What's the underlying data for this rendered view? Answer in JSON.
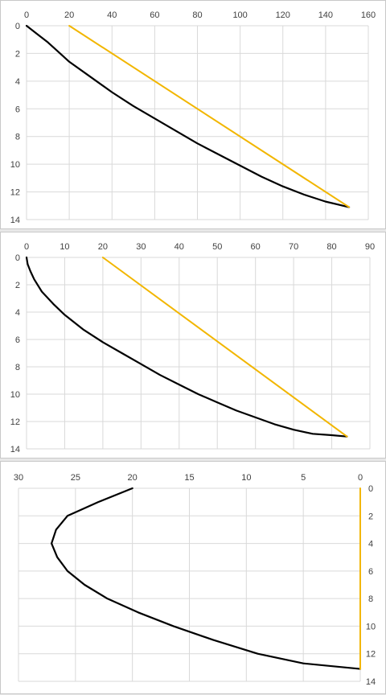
{
  "colors": {
    "series_black": "#000000",
    "series_gold": "#f2b600",
    "grid": "#d9d9d9"
  },
  "chart_data": [
    {
      "type": "line",
      "xlim": [
        0,
        160
      ],
      "ylim": [
        0,
        14
      ],
      "x_ticks": [
        0,
        20,
        40,
        60,
        80,
        100,
        120,
        140,
        160
      ],
      "y_ticks": [
        0,
        2,
        4,
        6,
        8,
        10,
        12,
        14
      ],
      "x_axis": "top",
      "y_reversed": true,
      "grid": true,
      "series": [
        {
          "color": "#000000",
          "points": [
            [
              0,
              0
            ],
            [
              5,
              0.6
            ],
            [
              10,
              1.2
            ],
            [
              15,
              1.9
            ],
            [
              20,
              2.6
            ],
            [
              30,
              3.7
            ],
            [
              40,
              4.8
            ],
            [
              50,
              5.8
            ],
            [
              60,
              6.7
            ],
            [
              70,
              7.6
            ],
            [
              80,
              8.5
            ],
            [
              90,
              9.3
            ],
            [
              100,
              10.1
            ],
            [
              110,
              10.9
            ],
            [
              120,
              11.6
            ],
            [
              130,
              12.2
            ],
            [
              140,
              12.7
            ],
            [
              151,
              13.1
            ]
          ]
        },
        {
          "color": "#f2b600",
          "points": [
            [
              20,
              0
            ],
            [
              151,
              13.1
            ]
          ]
        }
      ]
    },
    {
      "type": "line",
      "xlim": [
        0,
        90
      ],
      "ylim": [
        0,
        14
      ],
      "x_ticks": [
        0,
        10,
        20,
        30,
        40,
        50,
        60,
        70,
        80,
        90
      ],
      "y_ticks": [
        0,
        2,
        4,
        6,
        8,
        10,
        12,
        14
      ],
      "x_axis": "top",
      "y_reversed": true,
      "grid": true,
      "series": [
        {
          "color": "#000000",
          "points": [
            [
              0,
              0
            ],
            [
              0.3,
              0.5
            ],
            [
              1,
              1.0
            ],
            [
              2,
              1.6
            ],
            [
              4,
              2.5
            ],
            [
              7,
              3.4
            ],
            [
              10,
              4.2
            ],
            [
              15,
              5.3
            ],
            [
              20,
              6.2
            ],
            [
              25,
              7.0
            ],
            [
              30,
              7.8
            ],
            [
              35,
              8.6
            ],
            [
              40,
              9.3
            ],
            [
              45,
              10.0
            ],
            [
              50,
              10.6
            ],
            [
              55,
              11.2
            ],
            [
              60,
              11.7
            ],
            [
              65,
              12.2
            ],
            [
              70,
              12.6
            ],
            [
              75,
              12.9
            ],
            [
              80,
              13.0
            ],
            [
              84,
              13.1
            ]
          ]
        },
        {
          "color": "#f2b600",
          "points": [
            [
              20,
              0
            ],
            [
              84,
              13.1
            ]
          ]
        }
      ]
    },
    {
      "type": "line",
      "xlim": [
        30,
        0
      ],
      "ylim": [
        0,
        14
      ],
      "x_ticks": [
        30,
        25,
        20,
        15,
        10,
        5,
        0
      ],
      "y_ticks": [
        0,
        2,
        4,
        6,
        8,
        10,
        12,
        14
      ],
      "x_axis": "top",
      "y_axis": "right",
      "y_reversed": true,
      "grid": true,
      "series": [
        {
          "color": "#000000",
          "points": [
            [
              20,
              0
            ],
            [
              23,
              1
            ],
            [
              25.7,
              2
            ],
            [
              26.7,
              3
            ],
            [
              27.1,
              4
            ],
            [
              26.6,
              5
            ],
            [
              25.7,
              6
            ],
            [
              24.2,
              7
            ],
            [
              22.2,
              8
            ],
            [
              19.5,
              9
            ],
            [
              16.4,
              10
            ],
            [
              12.9,
              11
            ],
            [
              9.0,
              12
            ],
            [
              5.0,
              12.7
            ],
            [
              0,
              13.1
            ]
          ]
        },
        {
          "color": "#f2b600",
          "points": [
            [
              0,
              0
            ],
            [
              0,
              13.1
            ]
          ]
        }
      ]
    }
  ]
}
